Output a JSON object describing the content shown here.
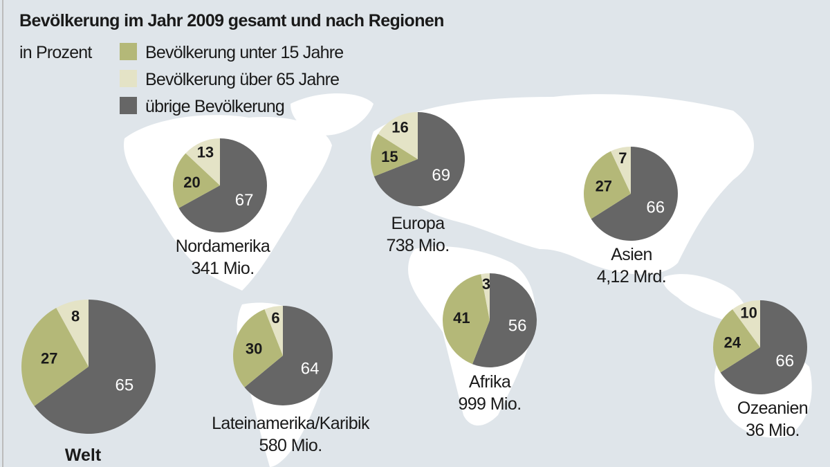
{
  "chart_data": {
    "type": "pie",
    "title": "Bevölkerung im Jahr 2009 gesamt und nach Regionen",
    "unit_label": "in Prozent",
    "legend": [
      {
        "key": "under15",
        "label": "Bevölkerung unter 15 Jahre",
        "color": "#b4b878"
      },
      {
        "key": "over65",
        "label": "Bevölkerung über 65 Jahre",
        "color": "#e4e3c6"
      },
      {
        "key": "rest",
        "label": "übrige Bevölkerung",
        "color": "#666666"
      }
    ],
    "pies": [
      {
        "name": "Nordamerika",
        "population": "341 Mio.",
        "under15": 20,
        "over65": 13,
        "rest": 67
      },
      {
        "name": "Europa",
        "population": "738 Mio.",
        "under15": 15,
        "over65": 16,
        "rest": 69
      },
      {
        "name": "Asien",
        "population": "4,12 Mrd.",
        "under15": 27,
        "over65": 7,
        "rest": 66
      },
      {
        "name": "Welt",
        "population": "",
        "under15": 27,
        "over65": 8,
        "rest": 65
      },
      {
        "name": "Lateinamerika/Karibik",
        "population": "580 Mio.",
        "under15": 30,
        "over65": 6,
        "rest": 64
      },
      {
        "name": "Afrika",
        "population": "999 Mio.",
        "under15": 41,
        "over65": 3,
        "rest": 56
      },
      {
        "name": "Ozeanien",
        "population": "36 Mio.",
        "under15": 24,
        "over65": 10,
        "rest": 66
      }
    ],
    "background_colors": {
      "ocean": "#dfe5ea",
      "land": "#ffffff"
    }
  }
}
